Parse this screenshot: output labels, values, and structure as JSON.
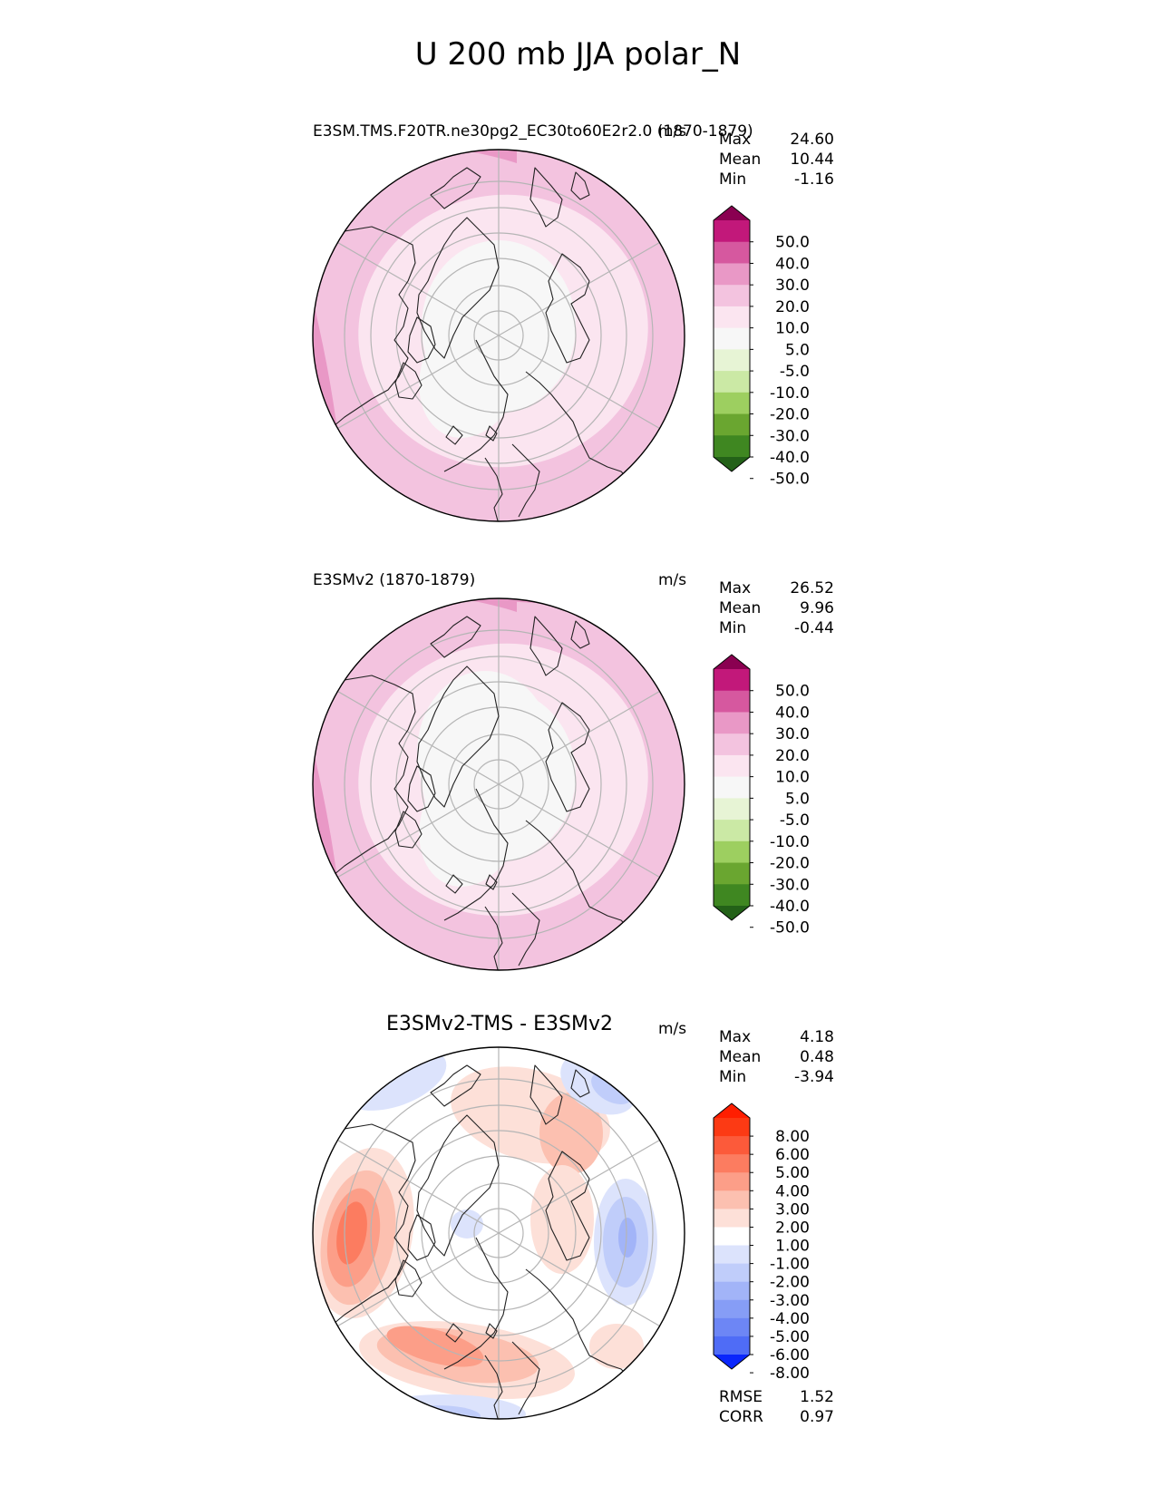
{
  "title": "U 200 mb JJA polar_N",
  "colors": {
    "seq_levels_pos": [
      "#f7f7f7",
      "#fbe5f0",
      "#f3c3df",
      "#e998c6",
      "#d6589f",
      "#c2187a",
      "#8a0051"
    ],
    "seq_levels_neg": [
      "#e7f4d5",
      "#cbe9a5",
      "#9dcf60",
      "#6aa630",
      "#3f8721",
      "#236118"
    ],
    "diff_pos": [
      "#fde0d8",
      "#fcc0b0",
      "#fc9e88",
      "#fc7c60",
      "#fc5a3a",
      "#fc3a14",
      "#ff1e00"
    ],
    "diff_neg": [
      "#dce3fc",
      "#c0cdfa",
      "#a2b4f8",
      "#869df6",
      "#6d86f5",
      "#4f6cf6",
      "#2e4ef8",
      "#0a26fc"
    ]
  },
  "chart_data": [
    {
      "type": "heatmap",
      "projection": "north polar stereographic",
      "title": "E3SM.TMS.F20TR.ne30pg2_EC30to60E2r2.0",
      "subtitle": "(1870-1879)",
      "units": "m/s",
      "stats": [
        {
          "label": "Max",
          "value": "24.60"
        },
        {
          "label": "Mean",
          "value": "10.44"
        },
        {
          "label": "Min",
          "value": "-1.16"
        }
      ],
      "colorbar_levels": [
        "50.0",
        "40.0",
        "30.0",
        "20.0",
        "10.0",
        "5.0",
        "-5.0",
        "-10.0",
        "-20.0",
        "-30.0",
        "-40.0",
        "-50.0"
      ],
      "colorbar_colors": [
        "#8a0051",
        "#c2187a",
        "#d6589f",
        "#e998c6",
        "#f3c3df",
        "#fbe5f0",
        "#f7f7f7",
        "#e7f4d5",
        "#cbe9a5",
        "#9dcf60",
        "#6aa630",
        "#3f8721",
        "#236118"
      ],
      "value_range": [
        -1.16,
        24.6
      ]
    },
    {
      "type": "heatmap",
      "projection": "north polar stereographic",
      "title": "E3SMv2 (1870-1879)",
      "units": "m/s",
      "stats": [
        {
          "label": "Max",
          "value": "26.52"
        },
        {
          "label": "Mean",
          "value": "9.96"
        },
        {
          "label": "Min",
          "value": "-0.44"
        }
      ],
      "colorbar_levels": [
        "50.0",
        "40.0",
        "30.0",
        "20.0",
        "10.0",
        "5.0",
        "-5.0",
        "-10.0",
        "-20.0",
        "-30.0",
        "-40.0",
        "-50.0"
      ],
      "colorbar_colors": [
        "#8a0051",
        "#c2187a",
        "#d6589f",
        "#e998c6",
        "#f3c3df",
        "#fbe5f0",
        "#f7f7f7",
        "#e7f4d5",
        "#cbe9a5",
        "#9dcf60",
        "#6aa630",
        "#3f8721",
        "#236118"
      ],
      "value_range": [
        -0.44,
        26.52
      ]
    },
    {
      "type": "heatmap",
      "projection": "north polar stereographic",
      "title": "E3SMv2-TMS - E3SMv2",
      "units": "m/s",
      "stats": [
        {
          "label": "Max",
          "value": "4.18"
        },
        {
          "label": "Mean",
          "value": "0.48"
        },
        {
          "label": "Min",
          "value": "-3.94"
        }
      ],
      "colorbar_levels": [
        "8.00",
        "6.00",
        "5.00",
        "4.00",
        "3.00",
        "2.00",
        "1.00",
        "-1.00",
        "-2.00",
        "-3.00",
        "-4.00",
        "-5.00",
        "-6.00",
        "-8.00"
      ],
      "colorbar_colors": [
        "#ff1e00",
        "#fc3a14",
        "#fc5a3a",
        "#fc7c60",
        "#fc9e88",
        "#fcc0b0",
        "#fde0d8",
        "#ffffff",
        "#dce3fc",
        "#c0cdfa",
        "#a2b4f8",
        "#869df6",
        "#6d86f5",
        "#4f6cf6",
        "#0a26fc"
      ],
      "value_range": [
        -3.94,
        4.18
      ],
      "extra_stats": [
        {
          "label": "RMSE",
          "value": "1.52"
        },
        {
          "label": "CORR",
          "value": "0.97"
        }
      ]
    }
  ]
}
